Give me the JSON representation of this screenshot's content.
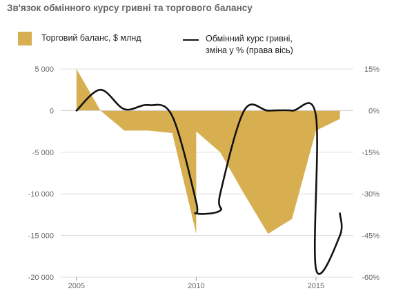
{
  "title": "Зв'язок обмінного курсу гривні та торгового балансу",
  "colors": {
    "area": "#D8AF50",
    "line": "#111111",
    "grid": "#DDDDDD"
  },
  "legend": {
    "area_label": "Торговий баланс, $ млнд",
    "line_label_1": "Обмінний курс гривні,",
    "line_label_2": "зміна у % (права вісь)"
  },
  "chart_data": {
    "type": "area",
    "x_ticks": [
      "2005",
      "2010",
      "2015"
    ],
    "left_axis": {
      "range": [
        -20000,
        5000
      ],
      "ticks": [
        5000,
        0,
        -5000,
        -10000,
        -15000,
        -20000
      ],
      "tick_labels": [
        "5 000",
        "0",
        "-5 000",
        "-10 000",
        "-15 000",
        "-20 000"
      ]
    },
    "right_axis": {
      "range": [
        -60,
        15
      ],
      "ticks": [
        15,
        0,
        -15,
        -30,
        -45,
        -60
      ],
      "tick_labels": [
        "15%",
        "0%",
        "-15%",
        "-30%",
        "-45%",
        "-60%"
      ]
    },
    "series": [
      {
        "name": "Торговий баланс, $ млнд",
        "axis": "left",
        "type": "area",
        "points": [
          [
            2005.0,
            5000
          ],
          [
            2006.0,
            0
          ],
          [
            2007.0,
            -2400
          ],
          [
            2008.0,
            -2400
          ],
          [
            2009.0,
            -2700
          ],
          [
            2010.0,
            -14800
          ],
          [
            2010.0,
            -2500
          ],
          [
            2011.0,
            -5000
          ],
          [
            2012.0,
            -10000
          ],
          [
            2013.0,
            -14800
          ],
          [
            2014.0,
            -13000
          ],
          [
            2015.0,
            -2400
          ],
          [
            2016.0,
            -1000
          ]
        ]
      },
      {
        "name": "Обмінний курс гривні, зміна у % (права вісь)",
        "axis": "right",
        "type": "line",
        "points": [
          [
            2005.0,
            0
          ],
          [
            2006.0,
            7.5
          ],
          [
            2007.0,
            0.5
          ],
          [
            2008.0,
            2
          ],
          [
            2009.0,
            -2
          ],
          [
            2010.0,
            -33
          ],
          [
            2010.0,
            -37
          ],
          [
            2011.0,
            -36
          ],
          [
            2011.0,
            -30
          ],
          [
            2012.0,
            0
          ],
          [
            2013.0,
            0
          ],
          [
            2014.0,
            0
          ],
          [
            2015.0,
            -2
          ],
          [
            2015.0,
            -57
          ],
          [
            2016.0,
            -45
          ],
          [
            2016.0,
            -37
          ]
        ]
      }
    ]
  }
}
